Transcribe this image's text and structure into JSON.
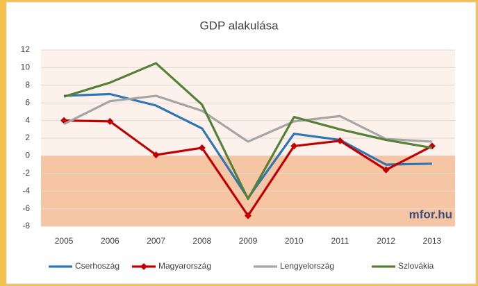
{
  "chart_data": {
    "type": "line",
    "title": "GDP alakulása",
    "annotation": "mfor.hu",
    "categories": [
      "2005",
      "2006",
      "2007",
      "2008",
      "2009",
      "2010",
      "2011",
      "2012",
      "2013"
    ],
    "series": [
      {
        "name": "Cserhoszág",
        "color": "#2e75b6",
        "values": [
          6.8,
          7.0,
          5.7,
          3.1,
          -4.8,
          2.5,
          1.8,
          -1.0,
          -0.9
        ]
      },
      {
        "name": "Magyarország",
        "color": "#c00000",
        "marker": "diamond",
        "values": [
          4.0,
          3.9,
          0.1,
          0.9,
          -6.8,
          1.1,
          1.7,
          -1.6,
          1.1
        ]
      },
      {
        "name": "Lengyelország",
        "color": "#a5a5a5",
        "values": [
          3.6,
          6.2,
          6.8,
          5.1,
          1.6,
          3.9,
          4.5,
          1.9,
          1.6
        ]
      },
      {
        "name": "Szlovákia",
        "color": "#548235",
        "values": [
          6.7,
          8.3,
          10.5,
          5.8,
          -4.9,
          4.4,
          3.0,
          1.8,
          0.9
        ]
      }
    ],
    "ylim": [
      -8,
      12
    ],
    "yticks": [
      -8,
      -6,
      -4,
      -2,
      0,
      2,
      4,
      6,
      8,
      10,
      12
    ],
    "grid": true,
    "positive_region_color": "#fdf1ec",
    "negative_region_color": "#f6c6a4",
    "legend": "bottom"
  }
}
